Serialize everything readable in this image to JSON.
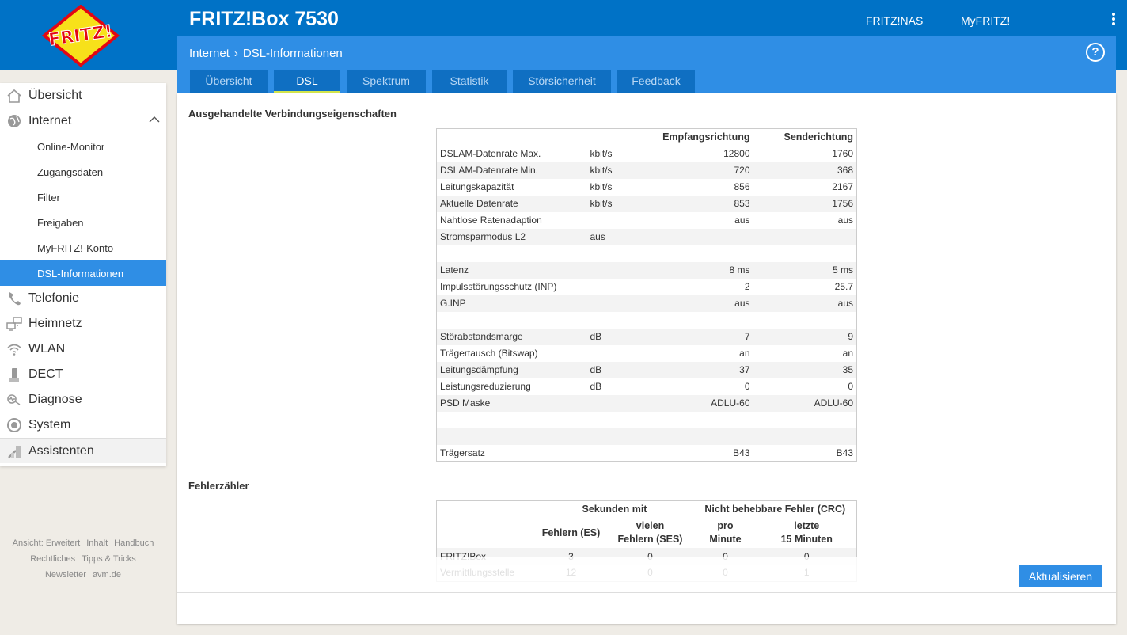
{
  "header": {
    "logo_text": "FRITZ!",
    "product": "FRITZ!Box 7530",
    "links": [
      "FRITZ!NAS",
      "MyFRITZ!"
    ]
  },
  "breadcrumb": {
    "section": "Internet",
    "page": "DSL-Informationen"
  },
  "tabs": [
    "Übersicht",
    "DSL",
    "Spektrum",
    "Statistik",
    "Störsicherheit",
    "Feedback"
  ],
  "active_tab": "DSL",
  "sidebar": {
    "main": [
      "Übersicht",
      "Internet",
      "Telefonie",
      "Heimnetz",
      "WLAN",
      "DECT",
      "Diagnose",
      "System",
      "Assistenten"
    ],
    "internet_sub": [
      "Online-Monitor",
      "Zugangsdaten",
      "Filter",
      "Freigaben",
      "MyFRITZ!-Konto",
      "DSL-Informationen"
    ],
    "footer": [
      "Ansicht: Erweitert",
      "Inhalt",
      "Handbuch",
      "Rechtliches",
      "Tipps & Tricks",
      "Newsletter",
      "avm.de"
    ]
  },
  "section1": {
    "title": "Ausgehandelte Verbindungseigenschaften",
    "col_rx": "Empfangsrichtung",
    "col_tx": "Senderichtung",
    "rows": [
      [
        "DSLAM-Datenrate Max.",
        "kbit/s",
        "12800",
        "1760"
      ],
      [
        "DSLAM-Datenrate Min.",
        "kbit/s",
        "720",
        "368"
      ],
      [
        "Leitungskapazität",
        "kbit/s",
        "856",
        "2167"
      ],
      [
        "Aktuelle Datenrate",
        "kbit/s",
        "853",
        "1756"
      ],
      [
        "Nahtlose Ratenadaption",
        "",
        "aus",
        "aus"
      ],
      [
        "Stromsparmodus L2",
        "aus",
        "",
        ""
      ],
      [
        "",
        "",
        "",
        ""
      ],
      [
        "Latenz",
        "",
        "8 ms",
        "5 ms"
      ],
      [
        "Impulsstörungsschutz (INP)",
        "",
        "2",
        "25.7"
      ],
      [
        "G.INP",
        "",
        "aus",
        "aus"
      ],
      [
        "",
        "",
        "",
        ""
      ],
      [
        "Störabstandsmarge",
        "dB",
        "7",
        "9"
      ],
      [
        "Trägertausch (Bitswap)",
        "",
        "an",
        "an"
      ],
      [
        "Leitungsdämpfung",
        "dB",
        "37",
        "35"
      ],
      [
        "Leistungsreduzierung",
        "dB",
        "0",
        "0"
      ],
      [
        "PSD Maske",
        "",
        "ADLU-60",
        "ADLU-60"
      ],
      [
        "",
        "",
        "",
        ""
      ],
      [
        "",
        "",
        "",
        ""
      ],
      [
        "Trägersatz",
        "",
        "B43",
        "B43"
      ]
    ]
  },
  "section2": {
    "title": "Fehlerzähler",
    "group1": "Sekunden mit",
    "group2": "Nicht behebbare Fehler (CRC)",
    "h_es": "Fehlern (ES)",
    "h_ses_1": "vielen",
    "h_ses_2": "Fehlern (SES)",
    "h_pm_1": "pro",
    "h_pm_2": "Minute",
    "h_15_1": "letzte",
    "h_15_2": "15 Minuten",
    "rows": [
      [
        "FRITZ!Box",
        "3",
        "0",
        "0",
        "0"
      ],
      [
        "Vermittlungsstelle",
        "12",
        "0",
        "0",
        "1"
      ]
    ]
  },
  "actions": {
    "refresh": "Aktualisieren"
  }
}
